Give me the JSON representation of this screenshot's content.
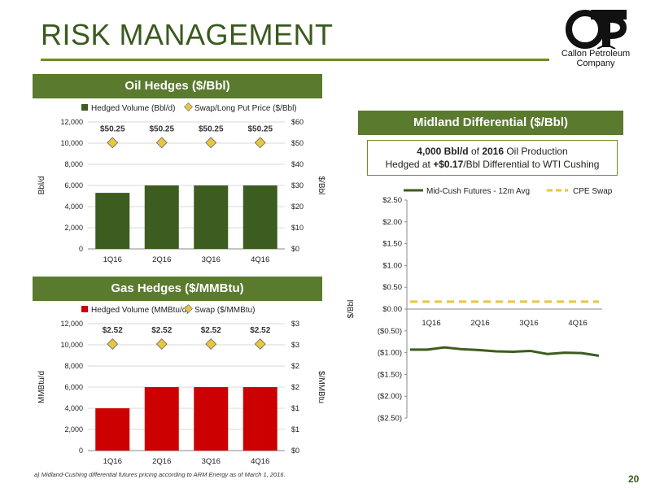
{
  "title": "RISK MANAGEMENT",
  "logo": {
    "line1": "Callon Petroleum",
    "line2": "Company"
  },
  "oil": {
    "header": "Oil Hedges ($/Bbl)",
    "chart_data": {
      "type": "bar",
      "categories": [
        "1Q16",
        "2Q16",
        "3Q16",
        "4Q16"
      ],
      "series": [
        {
          "name": "Hedged Volume (Bbl/d)",
          "values": [
            5300,
            6000,
            6000,
            6000
          ],
          "axis": "left",
          "color": "#3d5c1f"
        },
        {
          "name": "Swap/Long Put Price ($/Bbl)",
          "values": [
            50.25,
            50.25,
            50.25,
            50.25
          ],
          "axis": "right",
          "marker": "diamond",
          "color": "#e8c640"
        }
      ],
      "data_labels": [
        "$50.25",
        "$50.25",
        "$50.25",
        "$50.25"
      ],
      "ylabel": "Bbl/d",
      "y2label": "$/Bbl",
      "ylim": [
        0,
        12000
      ],
      "y2lim": [
        0,
        60
      ],
      "yticks": [
        "0",
        "2,000",
        "4,000",
        "6,000",
        "8,000",
        "10,000",
        "12,000"
      ],
      "y2ticks": [
        "$0",
        "$10",
        "$20",
        "$30",
        "$40",
        "$50",
        "$60"
      ],
      "legend": "top"
    }
  },
  "gas": {
    "header": "Gas Hedges ($/MMBtu)",
    "chart_data": {
      "type": "bar",
      "categories": [
        "1Q16",
        "2Q16",
        "3Q16",
        "4Q16"
      ],
      "series": [
        {
          "name": "Hedged Volume (MMBtu/d)",
          "values": [
            4000,
            6000,
            6000,
            6000
          ],
          "axis": "left",
          "color": "#cc0000"
        },
        {
          "name": "Swap ($/MMBtu)",
          "values": [
            2.52,
            2.52,
            2.52,
            2.52
          ],
          "axis": "right",
          "marker": "diamond",
          "color": "#e8c640"
        }
      ],
      "data_labels": [
        "$2.52",
        "$2.52",
        "$2.52",
        "$2.52"
      ],
      "ylabel": "MMBtu/d",
      "y2label": "$/MMBtu",
      "ylim": [
        0,
        12000
      ],
      "y2lim": [
        0,
        3
      ],
      "yticks": [
        "0",
        "2,000",
        "4,000",
        "6,000",
        "8,000",
        "10,000",
        "12,000"
      ],
      "y2ticks": [
        "$0",
        "$1",
        "$1",
        "$2",
        "$2",
        "$3",
        "$3"
      ],
      "legend": "top"
    }
  },
  "midland": {
    "header": "Midland Differential ($/Bbl)",
    "callout": {
      "l1_bold1": "4,000 Bbl/d",
      "l1_t1": " of ",
      "l1_bold2": "2016",
      "l1_t2": " Oil Production",
      "l2_t1": "Hedged at ",
      "l2_bold": "+$0.17",
      "l2_t2": "/Bbl Differential to WTI Cushing"
    },
    "chart_data": {
      "type": "line",
      "categories": [
        "1Q16",
        "2Q16",
        "3Q16",
        "4Q16"
      ],
      "series": [
        {
          "name": "Mid-Cush Futures - 12m Avg",
          "x": [
            0,
            1,
            2,
            3,
            4,
            5,
            6,
            7,
            8,
            9,
            10,
            11
          ],
          "values": [
            -0.93,
            -0.93,
            -0.88,
            -0.92,
            -0.94,
            -0.97,
            -0.98,
            -0.96,
            -1.03,
            -1.0,
            -1.01,
            -1.07
          ],
          "color": "#3d5c1f",
          "style": "solid"
        },
        {
          "name": "CPE Swap",
          "x": [
            0,
            11
          ],
          "values": [
            0.17,
            0.17
          ],
          "color": "#e8c640",
          "style": "dashed"
        }
      ],
      "ylabel": "$/Bbl",
      "ylim": [
        -2.5,
        2.5
      ],
      "yticks": [
        "($2.50)",
        "($2.00)",
        "($1.50)",
        "($1.00)",
        "($0.50)",
        "$0.00",
        "$0.50",
        "$1.00",
        "$1.50",
        "$2.00",
        "$2.50"
      ],
      "legend": "top"
    }
  },
  "footnote": "a)    Midland-Cushing differential futures pricing according to ARM Energy as of March 1, 2016.",
  "page_number": "20"
}
